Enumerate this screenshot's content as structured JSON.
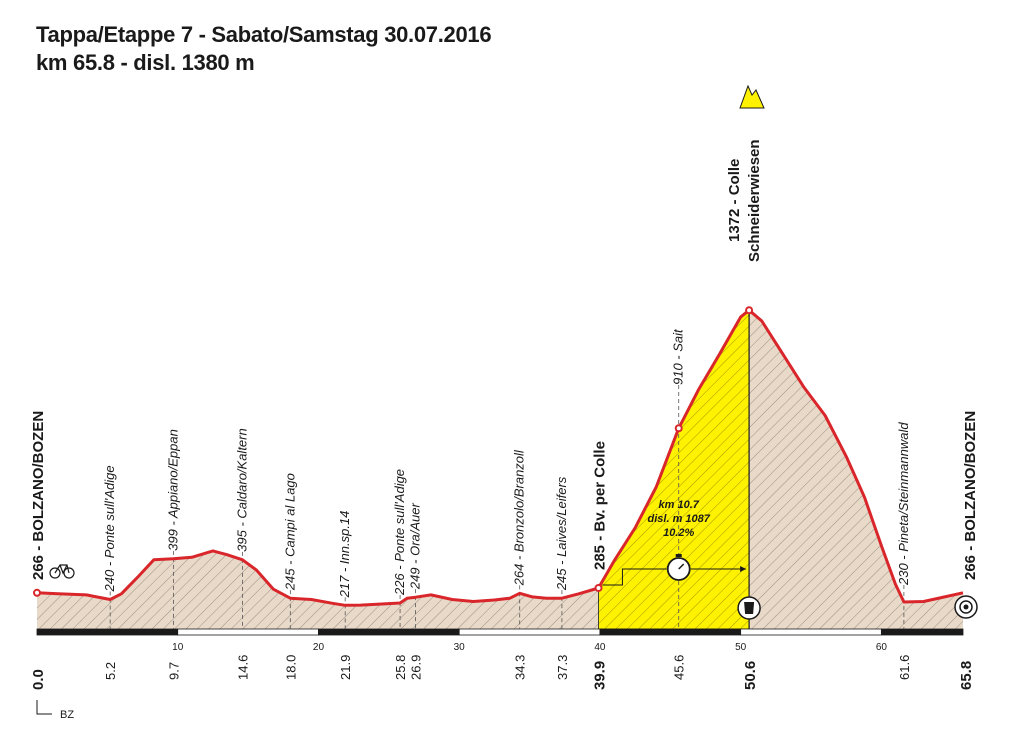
{
  "header": {
    "title": "Tappa/Etappe 7 - Sabato/Samstag  30.07.2016",
    "subtitle": "km 65.8 - disl. 1380 m"
  },
  "chart_data": {
    "type": "area",
    "xlim": [
      0,
      65.8
    ],
    "ylim": [
      0,
      1400
    ],
    "profile": [
      [
        0.0,
        266
      ],
      [
        1.5,
        262
      ],
      [
        3.5,
        258
      ],
      [
        5.2,
        240
      ],
      [
        6.0,
        262
      ],
      [
        7.2,
        330
      ],
      [
        8.3,
        395
      ],
      [
        9.7,
        399
      ],
      [
        11.0,
        405
      ],
      [
        12.5,
        430
      ],
      [
        13.5,
        415
      ],
      [
        14.6,
        395
      ],
      [
        15.6,
        355
      ],
      [
        16.8,
        280
      ],
      [
        18.0,
        245
      ],
      [
        19.5,
        240
      ],
      [
        21.0,
        225
      ],
      [
        21.9,
        217
      ],
      [
        23.0,
        218
      ],
      [
        24.5,
        222
      ],
      [
        25.8,
        226
      ],
      [
        26.3,
        245
      ],
      [
        26.9,
        249
      ],
      [
        28.0,
        258
      ],
      [
        29.5,
        240
      ],
      [
        31.0,
        232
      ],
      [
        32.5,
        238
      ],
      [
        33.6,
        245
      ],
      [
        34.3,
        264
      ],
      [
        35.2,
        250
      ],
      [
        36.2,
        245
      ],
      [
        37.3,
        245
      ],
      [
        38.5,
        262
      ],
      [
        39.9,
        285
      ],
      [
        41.0,
        390
      ],
      [
        42.5,
        520
      ],
      [
        44.0,
        680
      ],
      [
        45.6,
        910
      ],
      [
        47.0,
        1060
      ],
      [
        48.5,
        1200
      ],
      [
        50.0,
        1345
      ],
      [
        50.6,
        1372
      ],
      [
        51.5,
        1330
      ],
      [
        53.0,
        1200
      ],
      [
        54.5,
        1070
      ],
      [
        56.0,
        960
      ],
      [
        57.5,
        800
      ],
      [
        58.8,
        640
      ],
      [
        60.0,
        450
      ],
      [
        61.0,
        300
      ],
      [
        61.6,
        230
      ],
      [
        63.0,
        232
      ],
      [
        64.5,
        250
      ],
      [
        65.8,
        266
      ]
    ],
    "climb": {
      "from_km": 39.9,
      "to_km": 50.6,
      "label_km": "km 10.7",
      "label_disl": "disl. m 1087",
      "label_grade": "10.2%"
    },
    "start_label": "266 - BOLZANO/BOZEN",
    "finish_label": "266 - BOLZANO/BOZEN",
    "summit_label_1": "1372 - Colle",
    "summit_label_2": "Schneiderwiesen",
    "waypoints": [
      {
        "km": 5.2,
        "label": "240 - Ponte sull'Adige",
        "km_label": "5.2"
      },
      {
        "km": 9.7,
        "label": "399 - Appiano/Eppan",
        "km_label": "9.7"
      },
      {
        "km": 14.6,
        "label": "395 - Caldaro/Kaltern",
        "km_label": "14.6"
      },
      {
        "km": 18.0,
        "label": "245 - Campi al Lago",
        "km_label": "18.0"
      },
      {
        "km": 21.9,
        "label": "217 - Inn.sp.14",
        "km_label": "21.9"
      },
      {
        "km": 25.8,
        "label": "226 - Ponte sull'Adige",
        "km_label": "25.8"
      },
      {
        "km": 26.9,
        "label": "249 - Ora/Auer",
        "km_label": "26.9"
      },
      {
        "km": 34.3,
        "label": "264 - Bronzolo/Branzoll",
        "km_label": "34.3"
      },
      {
        "km": 37.3,
        "label": "245 - Laives/Leifers",
        "km_label": "37.3"
      },
      {
        "km": 45.6,
        "label": "910 - Sait",
        "km_label": "45.6"
      },
      {
        "km": 61.6,
        "label": "230 - Pineta/Steinmannwald",
        "km_label": "61.6"
      }
    ],
    "bold_waypoints": [
      {
        "km": 39.9,
        "label": "285 - Bv. per Colle",
        "km_label": "39.9"
      }
    ],
    "start_km_label": "0.0",
    "summit_km_label": "50.6",
    "finish_km_label": "65.8",
    "scale_ticks": [
      {
        "km": 10,
        "label": "10"
      },
      {
        "km": 20,
        "label": "20"
      },
      {
        "km": 30,
        "label": "30"
      },
      {
        "km": 40,
        "label": "40"
      },
      {
        "km": 50,
        "label": "50"
      },
      {
        "km": 60,
        "label": "60"
      }
    ],
    "legend_bz": "BZ",
    "colors": {
      "profile_line": "#d9262b",
      "fill": "#e8d9c8",
      "hatch": "#8a7f74",
      "climb": "#fff200",
      "scale_bar": "#1a1a1a"
    }
  }
}
